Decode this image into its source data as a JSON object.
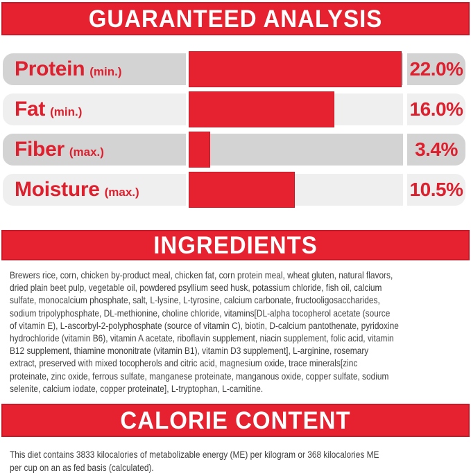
{
  "colors": {
    "brand_red": "#e62230",
    "text_red": "#dd1f2e",
    "row_gray_dark": "#d3d3d4",
    "row_gray_light": "#eeefee",
    "body_text": "#3f3f3f",
    "header_text": "#ffffff"
  },
  "sections": {
    "guaranteed_analysis": {
      "title": "GUARANTEED ANALYSIS",
      "rows": [
        {
          "name": "Protein",
          "qualifier": "(min.)",
          "value": "22.0%",
          "fill_pct": 99.5
        },
        {
          "name": "Fat",
          "qualifier": "(min.)",
          "value": "16.0%",
          "fill_pct": 68
        },
        {
          "name": "Fiber",
          "qualifier": "(max.)",
          "value": "3.4%",
          "fill_pct": 10
        },
        {
          "name": "Moisture",
          "qualifier": "(max.)",
          "value": "10.5%",
          "fill_pct": 49.5
        }
      ]
    },
    "ingredients": {
      "title": "INGREDIENTS",
      "text": "Brewers rice, corn, chicken by-product meal, chicken fat, corn protein meal, wheat gluten, natural flavors,\ndried plain beet pulp, vegetable oil, powdered psyllium seed husk, potassium chloride, fish oil, calcium\nsulfate, monocalcium phosphate, salt, L-lysine, L-tyrosine, calcium carbonate, fructooligosaccharides,\nsodium tripolyphosphate, DL-methionine, choline chloride, vitamins[DL-alpha tocopherol acetate (source\nof vitamin E), L-ascorbyl-2-polyphosphate (source of vitamin C), biotin, D-calcium pantothenate, pyridoxine\nhydrochloride (vitamin B6), vitamin A acetate, riboflavin supplement, niacin supplement, folic acid, vitamin\nB12 supplement, thiamine mononitrate (vitamin B1), vitamin D3 supplement], L-arginine, rosemary\nextract, preserved with mixed tocopherols and citric acid, magnesium oxide, trace minerals[zinc\nproteinate, zinc oxide, ferrous sulfate, manganese proteinate, manganous oxide, copper sulfate, sodium\nselenite, calcium iodate, copper proteinate], L-tryptophan, L-carnitine."
    },
    "calorie_content": {
      "title": "CALORIE CONTENT",
      "text": "This diet contains 3833 kilocalories of metabolizable energy (ME) per kilogram or 368 kilocalories ME\nper cup on an as fed basis (calculated)."
    }
  },
  "chart_data": {
    "type": "bar",
    "orientation": "horizontal",
    "title": "GUARANTEED ANALYSIS",
    "categories": [
      "Protein (min.)",
      "Fat (min.)",
      "Fiber (max.)",
      "Moisture (max.)"
    ],
    "values": [
      22.0,
      16.0,
      3.4,
      10.5
    ],
    "unit": "%",
    "data_labels": [
      "22.0%",
      "16.0%",
      "3.4%",
      "10.5%"
    ],
    "bar_fill_fraction_of_track": [
      0.995,
      0.68,
      0.1,
      0.495
    ],
    "bar_color": "#e62230",
    "track_colors_alternating": [
      "#d3d3d4",
      "#eeefee"
    ],
    "grid": false,
    "legend": false
  }
}
